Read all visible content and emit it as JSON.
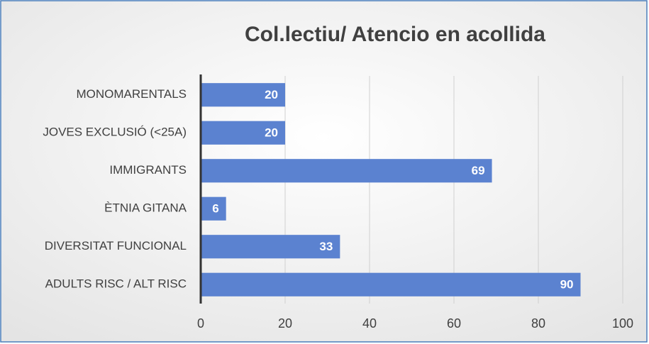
{
  "chart_data": {
    "type": "barh",
    "title": "Col.lectiu/ Atencio en acollida",
    "categories": [
      "MONOMARENTALS",
      "JOVES EXCLUSIÓ (<25A)",
      "IMMIGRANTS",
      "ÈTNIA GITANA",
      "DIVERSITAT FUNCIONAL",
      "ADULTS RISC / ALT RISC"
    ],
    "values": [
      20,
      20,
      69,
      6,
      33,
      90
    ],
    "color": "#5b82d0",
    "xlim": [
      0,
      100
    ],
    "xticks": [
      0,
      20,
      40,
      60,
      80,
      100
    ],
    "grid": true
  }
}
